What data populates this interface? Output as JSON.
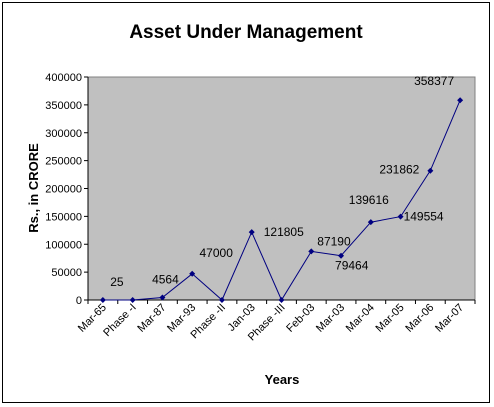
{
  "chart_data": {
    "type": "line",
    "title": "Asset Under Management",
    "xlabel": "Years",
    "ylabel": "Rs., in CRORE",
    "categories": [
      "Mar-65",
      "Phase -I",
      "Mar-87",
      "Mar-93",
      "Phase -II",
      "Jan-03",
      "Phase -III",
      "Feb-03",
      "Mar-03",
      "Mar-04",
      "Mar-05",
      "Mar-06",
      "Mar-07"
    ],
    "series": [
      {
        "name": "",
        "values": [
          25,
          0,
          4564,
          47000,
          0,
          121805,
          0,
          87190,
          79464,
          139616,
          149554,
          231862,
          358377
        ]
      }
    ],
    "data_labels": [
      "25",
      "",
      "4564",
      "47000",
      "",
      "121805",
      "",
      "87190",
      "79464",
      "139616",
      "149554",
      "231862",
      "358377"
    ],
    "yticks": [
      "0",
      "50000",
      "100000",
      "150000",
      "200000",
      "250000",
      "300000",
      "350000",
      "400000"
    ],
    "ylim": [
      0,
      400000
    ],
    "grid": false,
    "legend": "none",
    "colors": {
      "plot_background": "#c0c0c0",
      "line": "#000080",
      "marker": "#000080"
    }
  }
}
